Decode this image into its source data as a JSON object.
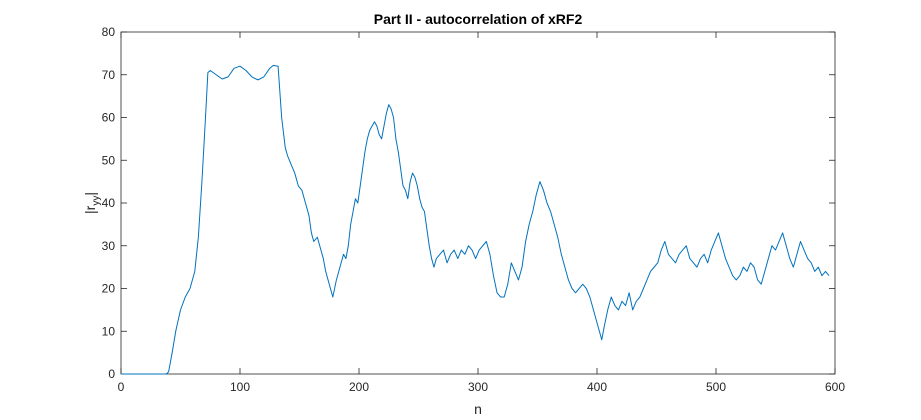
{
  "chart_data": {
    "type": "line",
    "title": "Part II - autocorrelation of xRF2",
    "xlabel": "n",
    "ylabel_main": "|r",
    "ylabel_sub": "yy",
    "ylabel_end": "|",
    "xlim": [
      0,
      600
    ],
    "ylim": [
      0,
      80
    ],
    "xticks": [
      0,
      100,
      200,
      300,
      400,
      500,
      600
    ],
    "yticks": [
      0,
      10,
      20,
      30,
      40,
      50,
      60,
      70,
      80
    ],
    "grid": false,
    "legend": "none",
    "series": [
      {
        "color": "#0072BD",
        "points": [
          [
            0,
            0
          ],
          [
            38,
            0
          ],
          [
            40,
            0.5
          ],
          [
            43,
            5
          ],
          [
            46,
            10
          ],
          [
            50,
            15
          ],
          [
            54,
            18
          ],
          [
            58,
            20
          ],
          [
            62,
            24
          ],
          [
            65,
            32
          ],
          [
            68,
            45
          ],
          [
            71,
            60
          ],
          [
            73,
            70.5
          ],
          [
            75,
            71
          ],
          [
            80,
            70
          ],
          [
            85,
            69
          ],
          [
            90,
            69.5
          ],
          [
            95,
            71.5
          ],
          [
            100,
            72
          ],
          [
            105,
            71
          ],
          [
            110,
            69.5
          ],
          [
            115,
            68.8
          ],
          [
            120,
            69.5
          ],
          [
            125,
            71.5
          ],
          [
            128,
            72.2
          ],
          [
            132,
            72
          ],
          [
            135,
            60
          ],
          [
            138,
            53
          ],
          [
            140,
            51
          ],
          [
            143,
            49
          ],
          [
            146,
            47
          ],
          [
            149,
            44
          ],
          [
            152,
            43
          ],
          [
            155,
            40
          ],
          [
            158,
            37
          ],
          [
            160,
            33
          ],
          [
            162,
            31
          ],
          [
            165,
            32
          ],
          [
            167,
            30
          ],
          [
            170,
            27
          ],
          [
            172,
            24
          ],
          [
            175,
            21
          ],
          [
            178,
            18
          ],
          [
            181,
            22
          ],
          [
            184,
            25
          ],
          [
            187,
            28
          ],
          [
            189,
            27
          ],
          [
            191,
            30
          ],
          [
            193,
            35
          ],
          [
            195,
            38
          ],
          [
            197,
            41
          ],
          [
            199,
            40
          ],
          [
            201,
            44
          ],
          [
            203,
            48
          ],
          [
            205,
            52
          ],
          [
            207,
            55
          ],
          [
            209,
            57
          ],
          [
            211,
            58
          ],
          [
            213,
            59
          ],
          [
            215,
            58
          ],
          [
            217,
            56
          ],
          [
            219,
            55
          ],
          [
            221,
            58
          ],
          [
            223,
            61
          ],
          [
            225,
            63
          ],
          [
            227,
            62
          ],
          [
            229,
            60
          ],
          [
            231,
            55
          ],
          [
            233,
            52
          ],
          [
            235,
            48
          ],
          [
            237,
            44
          ],
          [
            239,
            43
          ],
          [
            241,
            41
          ],
          [
            243,
            45
          ],
          [
            245,
            47
          ],
          [
            247,
            46
          ],
          [
            249,
            44
          ],
          [
            251,
            41
          ],
          [
            253,
            39
          ],
          [
            255,
            38
          ],
          [
            257,
            34
          ],
          [
            259,
            30
          ],
          [
            261,
            27
          ],
          [
            263,
            25
          ],
          [
            265,
            27
          ],
          [
            268,
            28
          ],
          [
            271,
            29
          ],
          [
            274,
            26
          ],
          [
            277,
            28
          ],
          [
            280,
            29
          ],
          [
            283,
            27
          ],
          [
            286,
            29
          ],
          [
            289,
            28
          ],
          [
            292,
            30
          ],
          [
            295,
            29
          ],
          [
            298,
            27
          ],
          [
            301,
            29
          ],
          [
            304,
            30
          ],
          [
            307,
            31
          ],
          [
            310,
            28
          ],
          [
            313,
            23
          ],
          [
            316,
            19
          ],
          [
            319,
            18
          ],
          [
            322,
            18
          ],
          [
            325,
            21
          ],
          [
            328,
            26
          ],
          [
            331,
            24
          ],
          [
            334,
            22
          ],
          [
            337,
            25
          ],
          [
            340,
            31
          ],
          [
            343,
            35
          ],
          [
            346,
            38
          ],
          [
            349,
            42
          ],
          [
            352,
            45
          ],
          [
            355,
            43
          ],
          [
            358,
            40
          ],
          [
            361,
            38
          ],
          [
            364,
            35
          ],
          [
            367,
            32
          ],
          [
            370,
            28
          ],
          [
            373,
            25
          ],
          [
            376,
            22
          ],
          [
            379,
            20
          ],
          [
            382,
            19
          ],
          [
            385,
            20
          ],
          [
            388,
            21
          ],
          [
            391,
            20
          ],
          [
            394,
            18
          ],
          [
            397,
            15
          ],
          [
            400,
            12
          ],
          [
            402,
            10
          ],
          [
            404,
            8
          ],
          [
            406,
            11
          ],
          [
            409,
            15
          ],
          [
            412,
            18
          ],
          [
            415,
            16
          ],
          [
            418,
            15
          ],
          [
            421,
            17
          ],
          [
            424,
            16
          ],
          [
            427,
            19
          ],
          [
            430,
            15
          ],
          [
            433,
            17
          ],
          [
            436,
            18
          ],
          [
            439,
            20
          ],
          [
            442,
            22
          ],
          [
            445,
            24
          ],
          [
            448,
            25
          ],
          [
            451,
            26
          ],
          [
            454,
            29
          ],
          [
            457,
            31
          ],
          [
            460,
            28
          ],
          [
            463,
            27
          ],
          [
            466,
            26
          ],
          [
            469,
            28
          ],
          [
            472,
            29
          ],
          [
            475,
            30
          ],
          [
            478,
            27
          ],
          [
            481,
            26
          ],
          [
            484,
            25
          ],
          [
            487,
            27
          ],
          [
            490,
            28
          ],
          [
            493,
            26
          ],
          [
            496,
            29
          ],
          [
            499,
            31
          ],
          [
            502,
            33
          ],
          [
            505,
            30
          ],
          [
            508,
            27
          ],
          [
            511,
            25
          ],
          [
            514,
            23
          ],
          [
            517,
            22
          ],
          [
            520,
            23
          ],
          [
            523,
            25
          ],
          [
            526,
            24
          ],
          [
            529,
            26
          ],
          [
            532,
            25
          ],
          [
            535,
            22
          ],
          [
            538,
            21
          ],
          [
            541,
            24
          ],
          [
            544,
            27
          ],
          [
            547,
            30
          ],
          [
            550,
            29
          ],
          [
            553,
            31
          ],
          [
            556,
            33
          ],
          [
            559,
            30
          ],
          [
            562,
            27
          ],
          [
            565,
            25
          ],
          [
            568,
            28
          ],
          [
            571,
            31
          ],
          [
            574,
            29
          ],
          [
            577,
            27
          ],
          [
            580,
            26
          ],
          [
            583,
            24
          ],
          [
            586,
            25
          ],
          [
            589,
            23
          ],
          [
            592,
            24
          ],
          [
            595,
            23
          ]
        ]
      }
    ]
  }
}
